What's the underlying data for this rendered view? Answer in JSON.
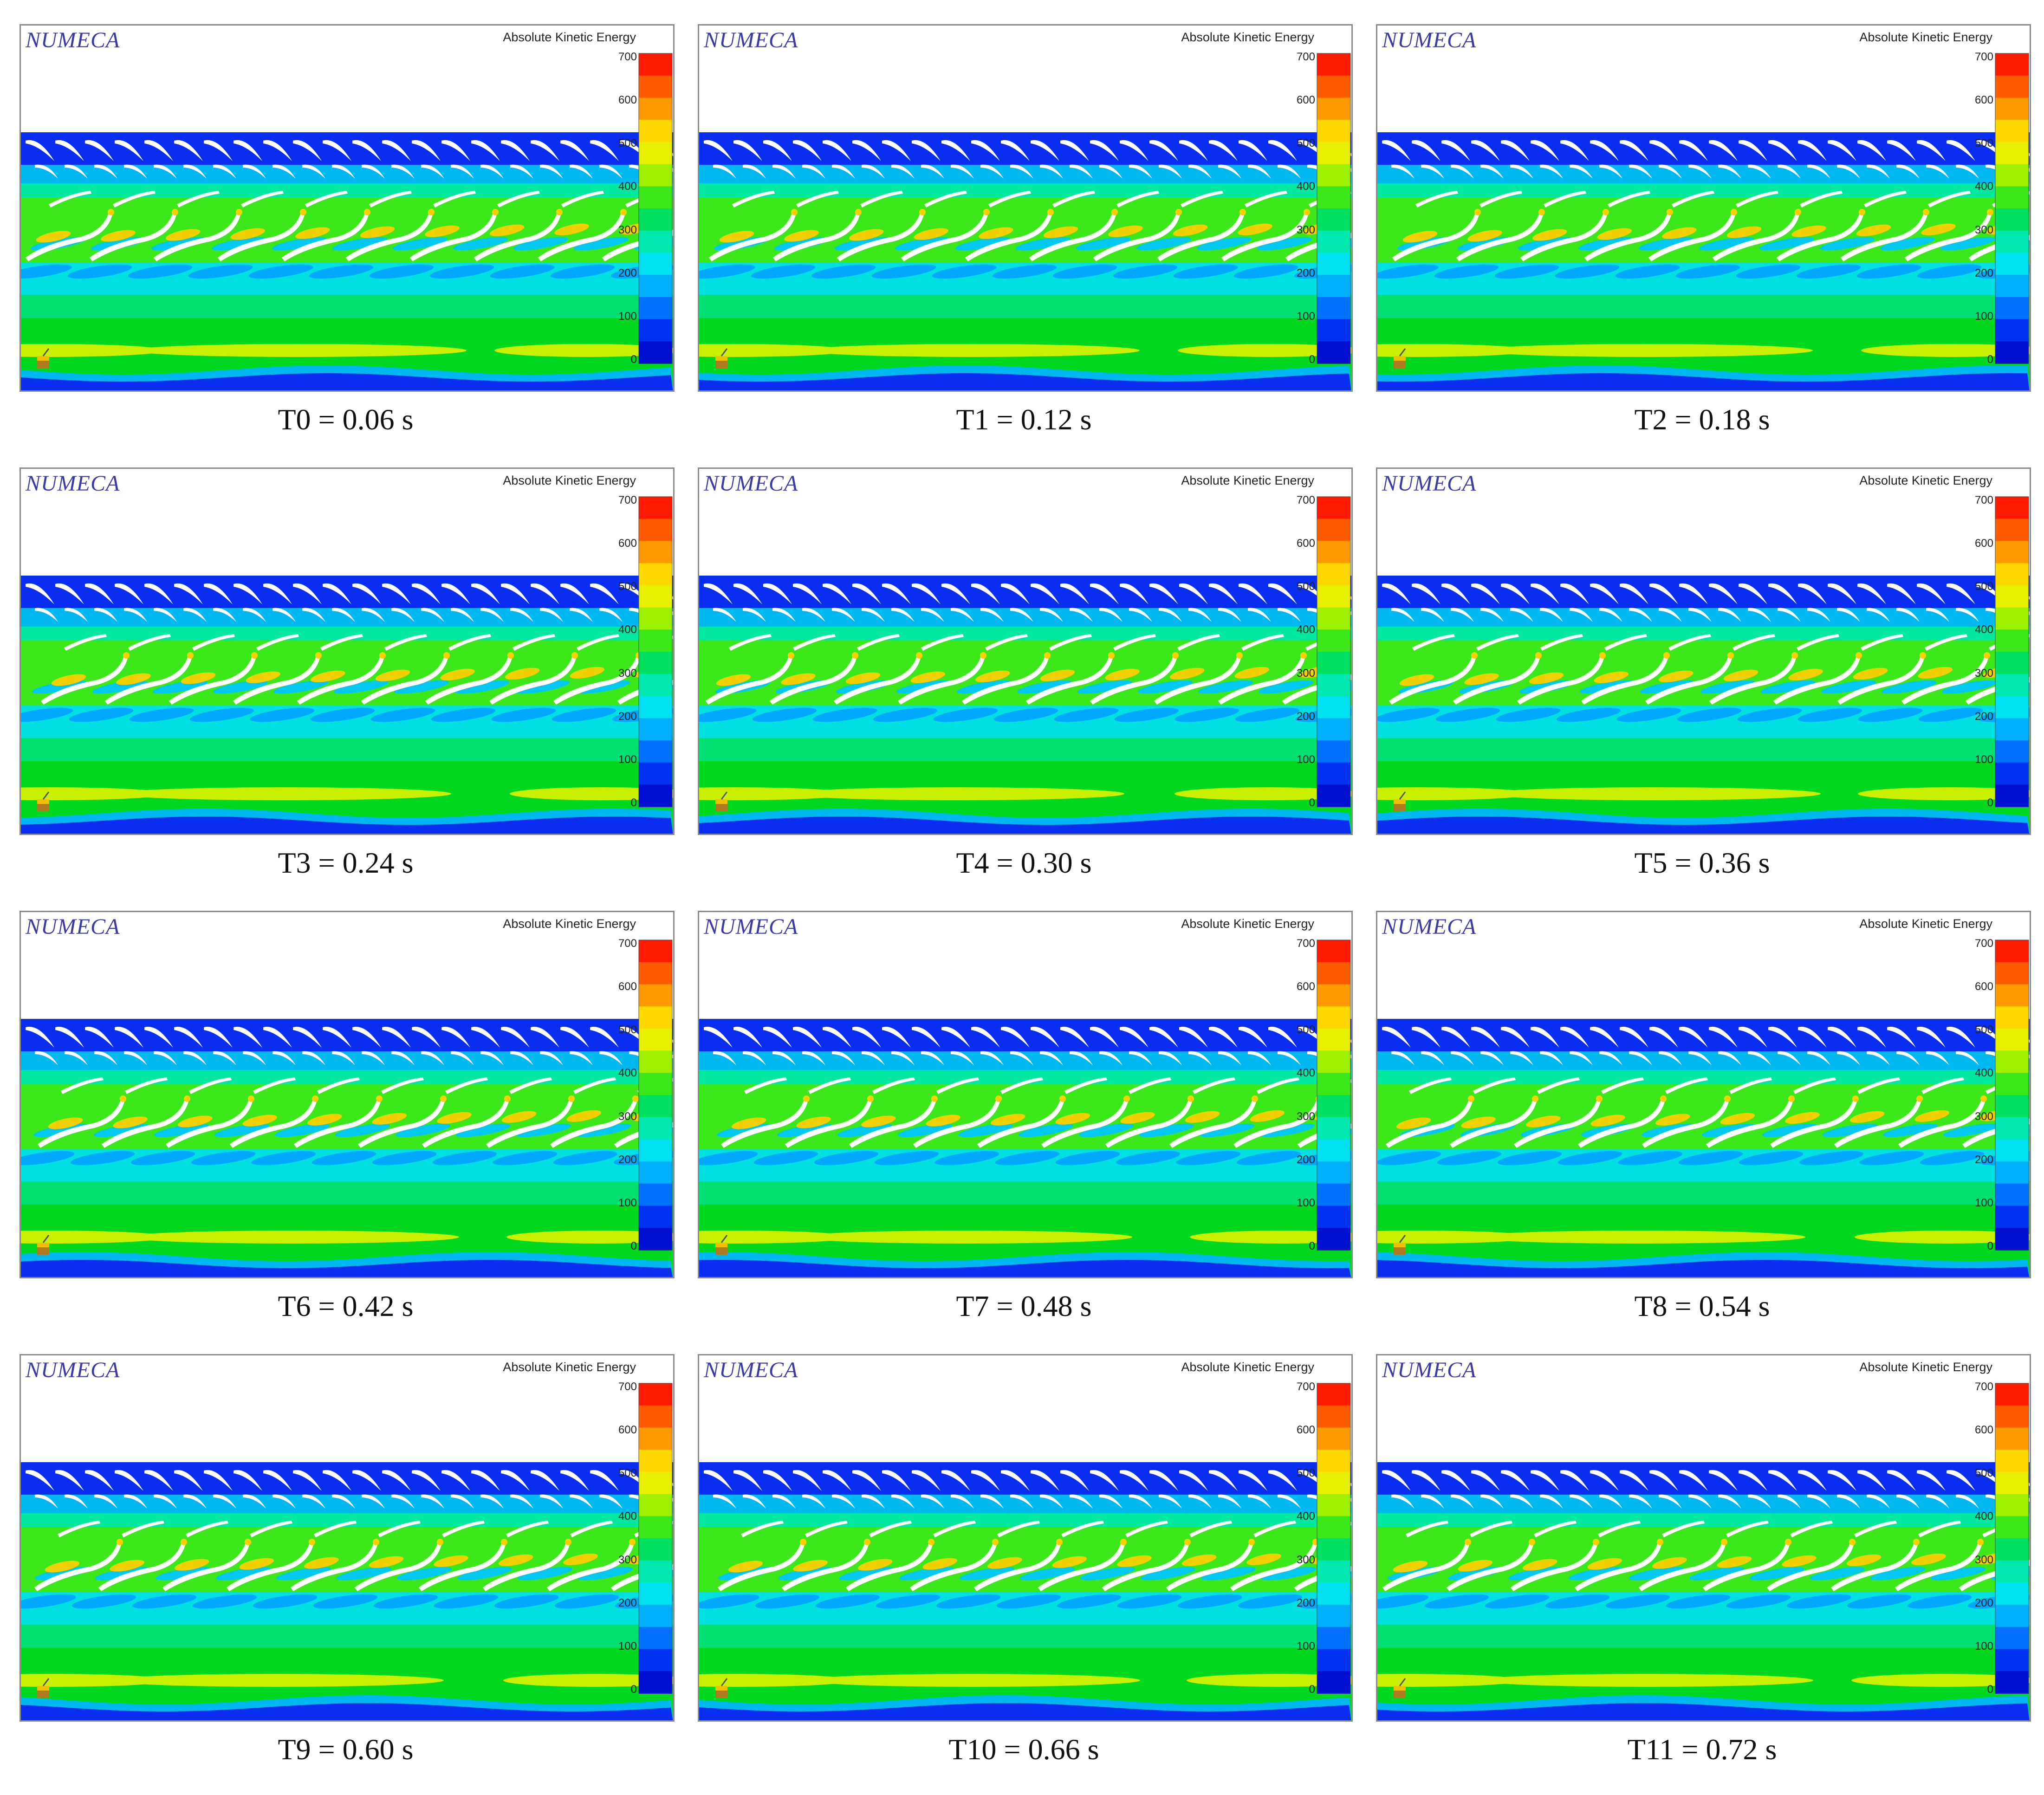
{
  "brand": "NUMECA",
  "quantity": "Absolute Kinetic Energy",
  "colorbar": {
    "ticks": [
      "700",
      "600",
      "500",
      "400",
      "300",
      "200",
      "100",
      "0"
    ],
    "colors": [
      "#ff1a00",
      "#ff5a00",
      "#ff9a00",
      "#ffd800",
      "#e6f000",
      "#9ef000",
      "#3ce81a",
      "#00e060",
      "#00e8b0",
      "#00e0f0",
      "#00b0ff",
      "#0070ff",
      "#0030f0",
      "#0010d0"
    ]
  },
  "panels": [
    {
      "caption": "T0 = 0.06 s"
    },
    {
      "caption": "T1 = 0.12 s"
    },
    {
      "caption": "T2 = 0.18 s"
    },
    {
      "caption": "T3 = 0.24 s"
    },
    {
      "caption": "T4 = 0.30 s"
    },
    {
      "caption": "T5 = 0.36 s"
    },
    {
      "caption": "T6 = 0.42 s"
    },
    {
      "caption": "T7 = 0.48 s"
    },
    {
      "caption": "T8 = 0.54 s"
    },
    {
      "caption": "T9 = 0.60 s"
    },
    {
      "caption": "T10 = 0.66 s"
    },
    {
      "caption": "T11 = 0.72 s"
    }
  ]
}
